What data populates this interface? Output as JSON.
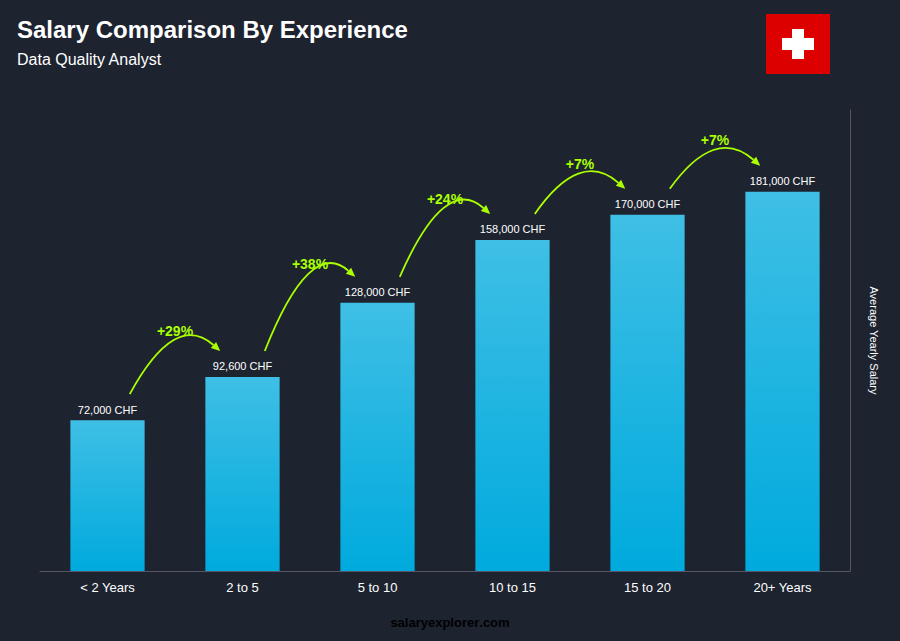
{
  "chart_data": {
    "type": "bar",
    "title": "Salary Comparison By Experience",
    "subtitle": "Data Quality Analyst",
    "categories": [
      "< 2 Years",
      "2 to 5",
      "5 to 10",
      "10 to 15",
      "15 to 20",
      "20+ Years"
    ],
    "values": [
      72000,
      92600,
      128000,
      158000,
      170000,
      181000
    ],
    "value_labels": [
      "72,000 CHF",
      "92,600 CHF",
      "128,000 CHF",
      "158,000 CHF",
      "170,000 CHF",
      "181,000 CHF"
    ],
    "data_labels": true,
    "color": "#00aadd",
    "ylim": [
      0,
      220000
    ],
    "tick_labels": "x",
    "grid": false,
    "ylabel": "Average Yearly Salary",
    "annotations": [
      {
        "text": "+29%",
        "color": "#aaff00"
      },
      {
        "text": "+38%",
        "color": "#aaff00"
      },
      {
        "text": "+24%",
        "color": "#aaff00"
      },
      {
        "text": "+7%",
        "color": "#aaff00"
      },
      {
        "text": "+7%",
        "color": "#aaff00"
      }
    ],
    "footer": [
      {
        "text": "salary",
        "color": "#ffffff"
      },
      {
        "text": "explorer",
        "color": "#aaff00"
      },
      {
        "text": ".com",
        "color": "#ffffff"
      }
    ]
  }
}
